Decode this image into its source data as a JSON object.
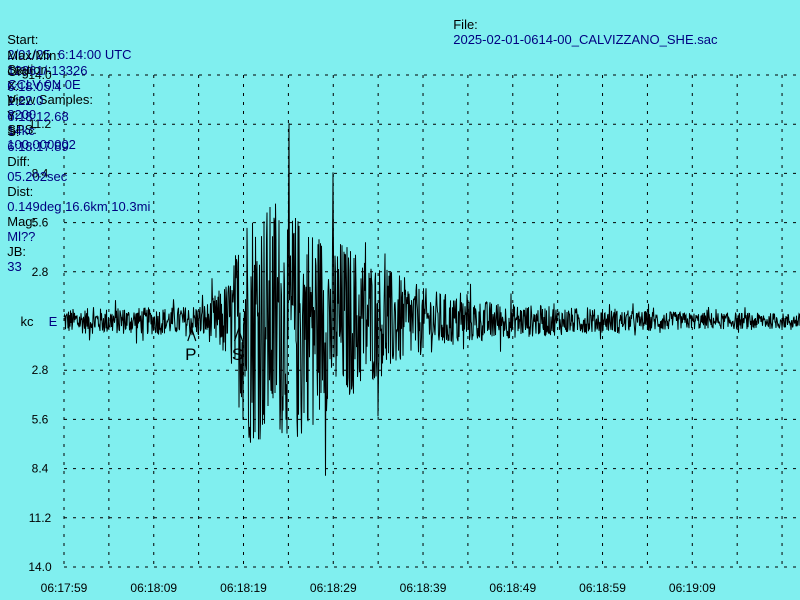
{
  "header": {
    "file_label": "File:",
    "file_value": "2025-02-01-0614-00_CALVIZZANO_SHE.sac",
    "start_label": "Start:",
    "start_value": "2/01/25  6:14:00 UTC",
    "station_label": "Station:",
    "station_value": "CCLV 0N 0E",
    "view_samples_label": "View Samples:",
    "view_samples_value": "8200",
    "sps_label": "SPS:",
    "sps_value": "100.000002",
    "maxmin_label": "Max/Min:",
    "maxmin_value": "12861/-13326",
    "x_label": "X:",
    "x_value": "1:22.0",
    "y_label": "Y:",
    "y_value": "14kc",
    "org_label": "Org:",
    "org_value": "6:18:05.4",
    "p_label": "P:",
    "p_value": "6:18:12.68",
    "s_label": "S:",
    "s_value": "6:18:17.89",
    "diff_label": "Diff:",
    "diff_value": "05.202sec",
    "dist_label": "Dist:",
    "dist_value": "0.149deg 16.6km 10.3mi",
    "mag_label": "Mag:",
    "mag_value": "Ml??",
    "jb_label": "JB:",
    "jb_value": "33"
  },
  "colors": {
    "background": "#80EFEF",
    "trace": "#000000",
    "text_value": "#000080",
    "grid": "#000000"
  },
  "chart_data": {
    "type": "line",
    "ylabel": "kc",
    "channel_label": "E",
    "y_tick_labels": [
      "14.0",
      "11.2",
      "8.4",
      "5.6",
      "2.8",
      "2.8",
      "5.6",
      "8.4",
      "11.2",
      "14.0"
    ],
    "y_tick_values": [
      14.0,
      11.2,
      8.4,
      5.6,
      2.8,
      -2.8,
      -5.6,
      -8.4,
      -11.2,
      -14.0
    ],
    "ylim": [
      -14.0,
      14.0
    ],
    "x_tick_labels": [
      "06:17:59",
      "06:18:09",
      "06:18:19",
      "06:18:29",
      "06:18:39",
      "06:18:49",
      "06:18:59",
      "06:19:09"
    ],
    "x_tick_seconds": [
      0,
      10,
      20,
      30,
      40,
      50,
      60,
      70
    ],
    "xlim_seconds": [
      0,
      82
    ],
    "grid": true,
    "picks": [
      {
        "label": "P",
        "time": "6:18:12.68",
        "seconds": 13.68
      },
      {
        "label": "S",
        "time": "6:18:17.89",
        "seconds": 18.89
      }
    ],
    "envelope": {
      "unit": "kc",
      "seconds": [
        0,
        8,
        13,
        16,
        18.5,
        19.5,
        20.5,
        22,
        25,
        28,
        32,
        36,
        40,
        45,
        50,
        60,
        70,
        82
      ],
      "amplitude": [
        1.3,
        1.4,
        1.5,
        2.0,
        4.5,
        9.0,
        13.0,
        12.5,
        12.0,
        10.0,
        8.0,
        5.5,
        3.5,
        2.3,
        1.8,
        1.2,
        0.9,
        0.8
      ]
    }
  }
}
